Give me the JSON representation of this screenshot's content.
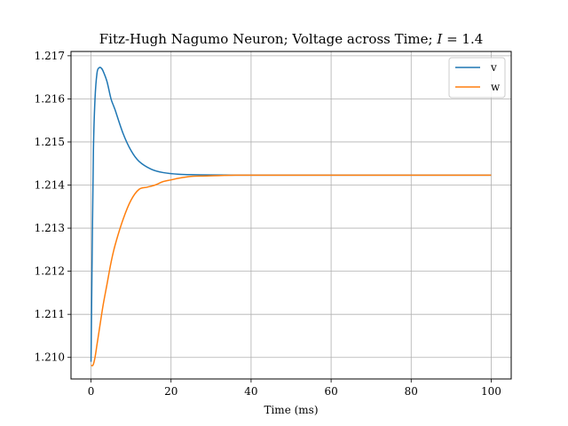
{
  "chart_data": {
    "type": "line",
    "title_prefix": "Fitz-Hugh Nagumo Neuron; Voltage across Time; ",
    "title_var": "I",
    "title_suffix": " = 1.4",
    "xlabel": "Time (ms)",
    "ylabel": "",
    "xlim": [
      -5,
      105
    ],
    "ylim": [
      1.2095,
      1.2171
    ],
    "xticks": [
      0,
      20,
      40,
      60,
      80,
      100
    ],
    "yticks": [
      1.21,
      1.211,
      1.212,
      1.213,
      1.214,
      1.215,
      1.216,
      1.217
    ],
    "ytick_labels": [
      "1.210",
      "1.211",
      "1.212",
      "1.213",
      "1.214",
      "1.215",
      "1.216",
      "1.217"
    ],
    "grid": true,
    "legend_position": "top-right",
    "series": [
      {
        "name": "v",
        "color": "#1f77b4",
        "x": [
          0,
          0.3,
          0.6,
          1.0,
          1.5,
          2.0,
          2.5,
          3.0,
          4,
          5,
          6,
          8,
          10,
          12,
          15,
          18,
          22,
          26,
          30,
          35,
          40,
          50,
          60,
          70,
          80,
          90,
          100
        ],
        "y": [
          1.2099,
          1.2125,
          1.2148,
          1.216,
          1.2166,
          1.21672,
          1.21672,
          1.21665,
          1.2164,
          1.216,
          1.21575,
          1.2152,
          1.2148,
          1.21455,
          1.21437,
          1.21429,
          1.21425,
          1.21424,
          1.214235,
          1.21423,
          1.21423,
          1.21423,
          1.21423,
          1.21423,
          1.21423,
          1.21423,
          1.21423
        ]
      },
      {
        "name": "w",
        "color": "#ff7f0e",
        "x": [
          0,
          0.5,
          1,
          1.5,
          2,
          3,
          4,
          5,
          6,
          8,
          10,
          12,
          14,
          16,
          18,
          20,
          22,
          25,
          28,
          32,
          36,
          40,
          50,
          60,
          70,
          80,
          90,
          100
        ],
        "y": [
          1.20982,
          1.20982,
          1.21,
          1.2103,
          1.2106,
          1.2112,
          1.2117,
          1.2122,
          1.2126,
          1.2132,
          1.21365,
          1.2139,
          1.21395,
          1.214,
          1.21408,
          1.21412,
          1.21416,
          1.2142,
          1.21421,
          1.21422,
          1.21423,
          1.21423,
          1.21423,
          1.21423,
          1.21423,
          1.21423,
          1.21423,
          1.21423
        ]
      }
    ]
  }
}
